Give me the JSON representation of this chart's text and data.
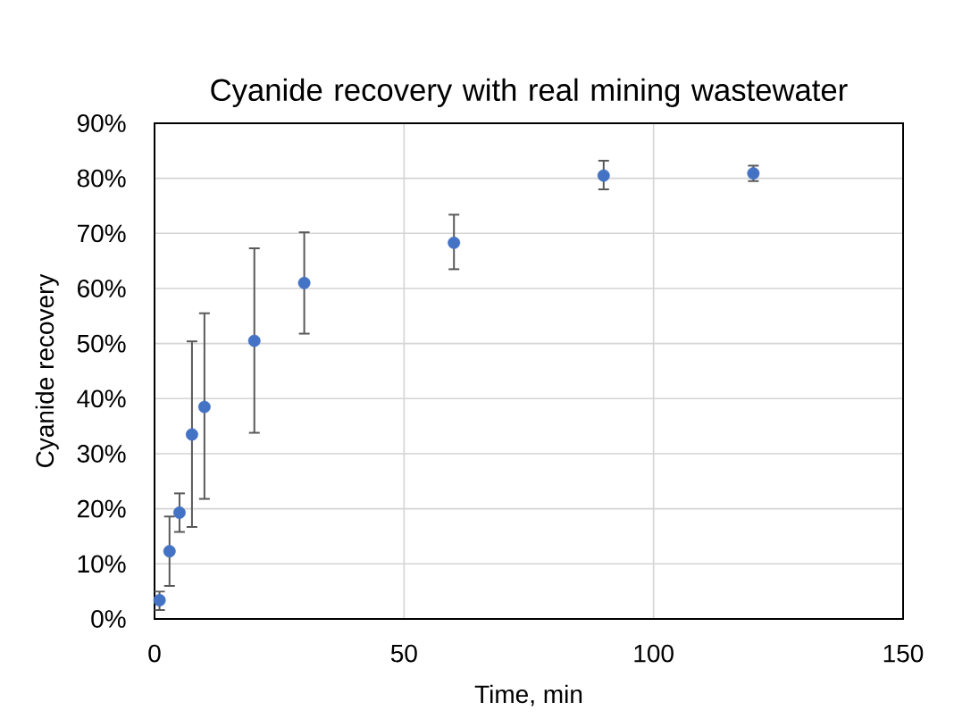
{
  "chart_data": {
    "type": "scatter",
    "title": "Cyanide recovery with real mining wastewater",
    "xlabel": "Time, min",
    "ylabel": "Cyanide recovery",
    "x": [
      1,
      3,
      5,
      7.5,
      10,
      20,
      30,
      60,
      90,
      120
    ],
    "values": [
      3.4,
      12.3,
      19.3,
      33.5,
      38.5,
      50.5,
      61.0,
      68.3,
      80.5,
      80.9
    ],
    "errors": [
      [
        1.6,
        5.0
      ],
      [
        6.0,
        18.6
      ],
      [
        15.8,
        22.8
      ],
      [
        16.7,
        50.4
      ],
      [
        21.8,
        55.5
      ],
      [
        33.8,
        67.3
      ],
      [
        51.8,
        70.2
      ],
      [
        63.5,
        73.4
      ],
      [
        78.0,
        83.2
      ],
      [
        79.5,
        82.3
      ]
    ],
    "color": "#4472c4",
    "marker": "circle",
    "grid": true,
    "xlim": [
      0,
      150
    ],
    "xticks": [
      0,
      50,
      100,
      150
    ],
    "ylim": [
      0,
      90
    ],
    "yticks": [
      {
        "value": 0,
        "label": "0%"
      },
      {
        "value": 10,
        "label": "10%"
      },
      {
        "value": 20,
        "label": "20%"
      },
      {
        "value": 30,
        "label": "30%"
      },
      {
        "value": 40,
        "label": "40%"
      },
      {
        "value": 50,
        "label": "50%"
      },
      {
        "value": 60,
        "label": "60%"
      },
      {
        "value": 70,
        "label": "70%"
      },
      {
        "value": 80,
        "label": "80%"
      },
      {
        "value": 90,
        "label": "90%"
      }
    ]
  }
}
